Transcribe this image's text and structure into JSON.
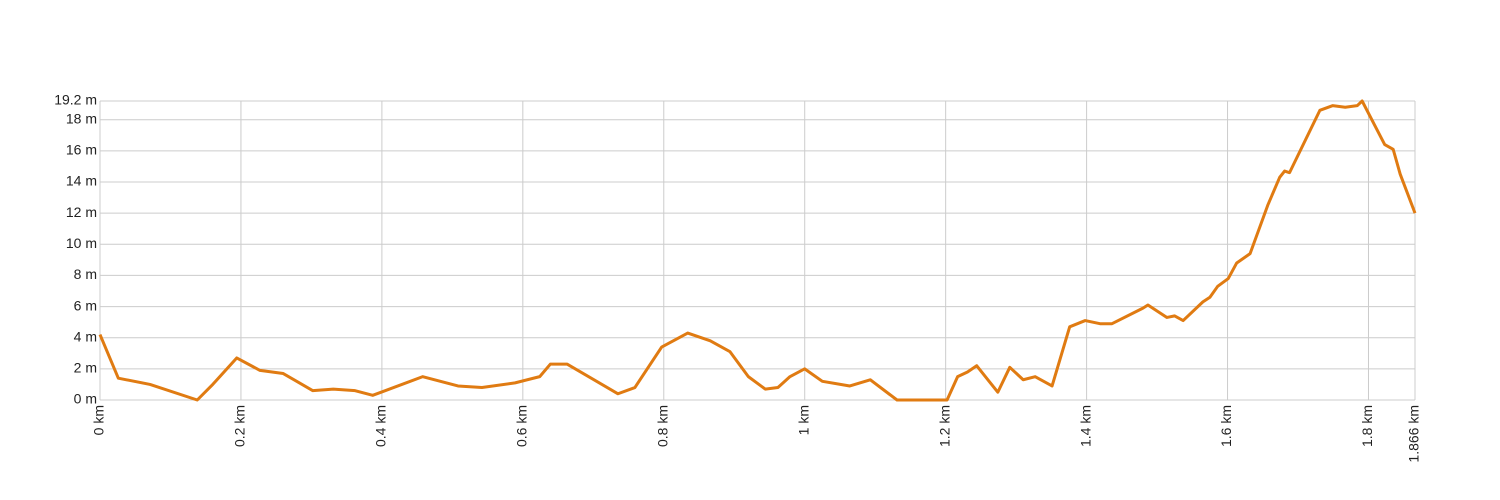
{
  "chart_data": {
    "type": "line",
    "x": [
      0,
      0.026,
      0.071,
      0.138,
      0.16,
      0.194,
      0.227,
      0.26,
      0.302,
      0.331,
      0.362,
      0.387,
      0.458,
      0.508,
      0.542,
      0.589,
      0.624,
      0.639,
      0.663,
      0.735,
      0.759,
      0.797,
      0.834,
      0.866,
      0.894,
      0.92,
      0.944,
      0.962,
      0.979,
      1.0,
      1.025,
      1.064,
      1.093,
      1.131,
      1.202,
      1.217,
      1.231,
      1.244,
      1.274,
      1.291,
      1.31,
      1.327,
      1.351,
      1.376,
      1.398,
      1.419,
      1.436,
      1.48,
      1.487,
      1.514,
      1.525,
      1.537,
      1.565,
      1.575,
      1.586,
      1.601,
      1.613,
      1.632,
      1.657,
      1.674,
      1.681,
      1.688,
      1.731,
      1.749,
      1.767,
      1.784,
      1.791,
      1.823,
      1.835,
      1.845,
      1.866
    ],
    "series": [
      {
        "color": "#e07b12",
        "values": [
          4.2,
          1.4,
          1.0,
          0.0,
          1.0,
          2.7,
          1.9,
          1.7,
          0.6,
          0.7,
          0.6,
          0.3,
          1.5,
          0.9,
          0.8,
          1.1,
          1.5,
          2.3,
          2.3,
          0.4,
          0.8,
          3.4,
          4.3,
          3.8,
          3.1,
          1.5,
          0.7,
          0.8,
          1.5,
          2.0,
          1.2,
          0.9,
          1.3,
          0,
          0,
          1.5,
          1.8,
          2.2,
          0.5,
          2.1,
          1.3,
          1.5,
          0.9,
          4.7,
          5.1,
          4.9,
          4.9,
          5.9,
          6.1,
          5.3,
          5.4,
          5.1,
          6.3,
          6.6,
          7.3,
          7.8,
          8.8,
          9.4,
          12.5,
          14.3,
          14.7,
          14.6,
          18.6,
          18.9,
          18.8,
          18.9,
          19.2,
          16.4,
          16.1,
          14.5,
          12.0
        ]
      }
    ],
    "xlim": [
      0,
      1.866
    ],
    "xticks": [
      {
        "value": 0,
        "label": "0 km"
      },
      {
        "value": 0.2,
        "label": "0.2 km"
      },
      {
        "value": 0.4,
        "label": "0.4 km"
      },
      {
        "value": 0.6,
        "label": "0.6 km"
      },
      {
        "value": 0.8,
        "label": "0.8 km"
      },
      {
        "value": 1,
        "label": "1 km"
      },
      {
        "value": 1.2,
        "label": "1.2 km"
      },
      {
        "value": 1.4,
        "label": "1.4 km"
      },
      {
        "value": 1.6,
        "label": "1.6 km"
      },
      {
        "value": 1.8,
        "label": "1.8 km"
      },
      {
        "value": 1.866,
        "label": "1.866 km"
      }
    ],
    "ylim": [
      0,
      19.2
    ],
    "yticks": [
      {
        "value": 0,
        "label": "0 m"
      },
      {
        "value": 2,
        "label": "2 m"
      },
      {
        "value": 4,
        "label": "4 m"
      },
      {
        "value": 6,
        "label": "6 m"
      },
      {
        "value": 8,
        "label": "8 m"
      },
      {
        "value": 10,
        "label": "10 m"
      },
      {
        "value": 12,
        "label": "12 m"
      },
      {
        "value": 14,
        "label": "14 m"
      },
      {
        "value": 16,
        "label": "16 m"
      },
      {
        "value": 18,
        "label": "18 m"
      },
      {
        "value": 19.2,
        "label": "19.2 m"
      }
    ],
    "grid": true
  }
}
